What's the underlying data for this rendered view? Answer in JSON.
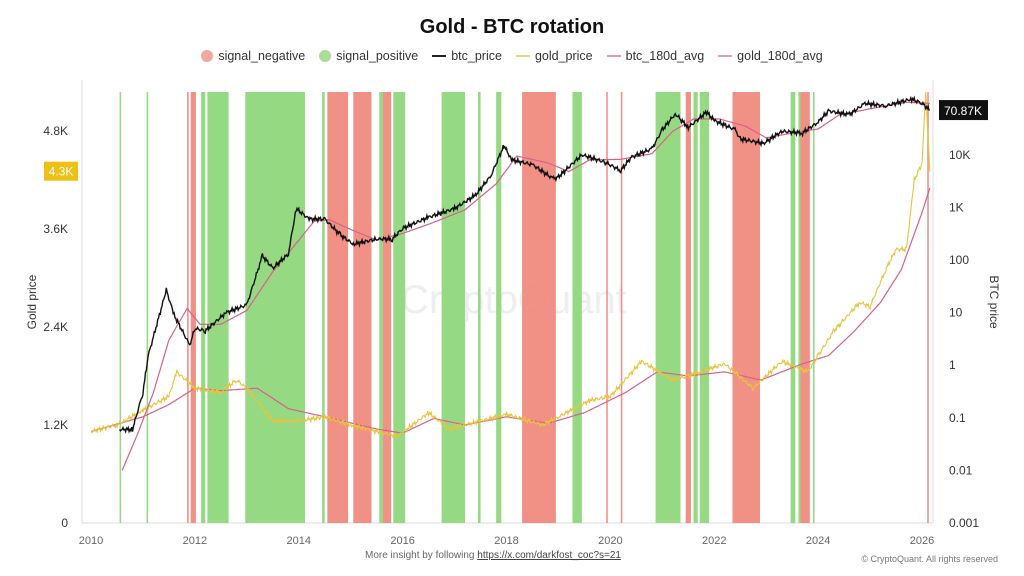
{
  "chart_data": {
    "type": "line",
    "title": "Gold - BTC rotation",
    "legend": [
      "signal_negative",
      "signal_positive",
      "btc_price",
      "gold_price",
      "btc_180d_avg",
      "gold_180d_avg"
    ],
    "legend_placement": "top",
    "colors": {
      "signal_negative": "#f08a7e",
      "signal_positive": "#8fd87c",
      "btc_price": "#111111",
      "gold_price": "#e8c43c",
      "btc_180d_avg": "#d9608c",
      "gold_180d_avg": "#d9608c"
    },
    "left_axis": {
      "label": "Gold price",
      "scale": "linear",
      "range": [
        0,
        5300
      ],
      "ticks": [
        "0",
        "1.2K",
        "2.4K",
        "3.6K",
        "4.8K"
      ],
      "tick_values": [
        0,
        1200,
        2400,
        3600,
        4800
      ],
      "current_label": "4.3K"
    },
    "right_axis": {
      "label": "BTC price",
      "scale": "log",
      "range": [
        0.001,
        150000
      ],
      "ticks": [
        "0.001",
        "0.01",
        "0.1",
        "1",
        "10",
        "100",
        "1K",
        "10K"
      ],
      "tick_values": [
        0.001,
        0.01,
        0.1,
        1,
        10,
        100,
        1000,
        10000
      ],
      "current_label": "70.87K"
    },
    "x_axis": {
      "range": [
        2009.9,
        2026.3
      ],
      "ticks": [
        "2010",
        "2012",
        "2014",
        "2016",
        "2018",
        "2020",
        "2022",
        "2024",
        "2026"
      ]
    },
    "grid": false,
    "btc_price": [
      [
        2010.55,
        0.06
      ],
      [
        2010.8,
        0.06
      ],
      [
        2011.0,
        0.3
      ],
      [
        2011.1,
        1.5
      ],
      [
        2011.45,
        27
      ],
      [
        2011.6,
        9
      ],
      [
        2011.9,
        2.4
      ],
      [
        2012.0,
        5
      ],
      [
        2012.2,
        4.5
      ],
      [
        2012.6,
        10
      ],
      [
        2013.0,
        14
      ],
      [
        2013.3,
        120
      ],
      [
        2013.5,
        70
      ],
      [
        2013.8,
        130
      ],
      [
        2013.95,
        950
      ],
      [
        2014.2,
        600
      ],
      [
        2014.5,
        600
      ],
      [
        2014.8,
        300
      ],
      [
        2015.05,
        200
      ],
      [
        2015.5,
        250
      ],
      [
        2015.8,
        250
      ],
      [
        2016.0,
        400
      ],
      [
        2016.5,
        650
      ],
      [
        2017.0,
        950
      ],
      [
        2017.4,
        1700
      ],
      [
        2017.7,
        4000
      ],
      [
        2017.95,
        15000
      ],
      [
        2018.1,
        8000
      ],
      [
        2018.5,
        6500
      ],
      [
        2018.9,
        3500
      ],
      [
        2019.0,
        3800
      ],
      [
        2019.45,
        10000
      ],
      [
        2019.9,
        7200
      ],
      [
        2020.2,
        5000
      ],
      [
        2020.4,
        9000
      ],
      [
        2020.8,
        13000
      ],
      [
        2021.0,
        30000
      ],
      [
        2021.25,
        60000
      ],
      [
        2021.5,
        33000
      ],
      [
        2021.85,
        65000
      ],
      [
        2022.0,
        45000
      ],
      [
        2022.4,
        30000
      ],
      [
        2022.5,
        20000
      ],
      [
        2022.95,
        16500
      ],
      [
        2023.3,
        28000
      ],
      [
        2023.7,
        26000
      ],
      [
        2024.0,
        42000
      ],
      [
        2024.2,
        68000
      ],
      [
        2024.6,
        58000
      ],
      [
        2024.9,
        95000
      ],
      [
        2025.3,
        85000
      ],
      [
        2025.8,
        115000
      ],
      [
        2026.0,
        95000
      ],
      [
        2026.15,
        70870
      ]
    ],
    "btc_180d_avg": [
      [
        2010.6,
        0.01
      ],
      [
        2010.9,
        0.05
      ],
      [
        2011.2,
        0.3
      ],
      [
        2011.5,
        3
      ],
      [
        2011.85,
        12
      ],
      [
        2012.1,
        6
      ],
      [
        2012.5,
        6
      ],
      [
        2013.0,
        11
      ],
      [
        2013.5,
        60
      ],
      [
        2013.9,
        180
      ],
      [
        2014.3,
        550
      ],
      [
        2014.6,
        580
      ],
      [
        2015.0,
        380
      ],
      [
        2015.5,
        240
      ],
      [
        2016.0,
        320
      ],
      [
        2016.6,
        520
      ],
      [
        2017.2,
        900
      ],
      [
        2017.8,
        2800
      ],
      [
        2018.2,
        9500
      ],
      [
        2018.8,
        7000
      ],
      [
        2019.2,
        4800
      ],
      [
        2019.6,
        8000
      ],
      [
        2020.2,
        8200
      ],
      [
        2020.8,
        10500
      ],
      [
        2021.2,
        28000
      ],
      [
        2021.6,
        48000
      ],
      [
        2022.1,
        48000
      ],
      [
        2022.6,
        35000
      ],
      [
        2023.0,
        21000
      ],
      [
        2023.6,
        27000
      ],
      [
        2024.0,
        31000
      ],
      [
        2024.4,
        57000
      ],
      [
        2025.0,
        75000
      ],
      [
        2025.7,
        100000
      ],
      [
        2026.15,
        95000
      ]
    ],
    "gold_price": [
      [
        2010.0,
        1120
      ],
      [
        2010.5,
        1200
      ],
      [
        2011.0,
        1380
      ],
      [
        2011.5,
        1550
      ],
      [
        2011.65,
        1850
      ],
      [
        2012.0,
        1650
      ],
      [
        2012.5,
        1600
      ],
      [
        2012.8,
        1750
      ],
      [
        2013.0,
        1650
      ],
      [
        2013.5,
        1250
      ],
      [
        2014.0,
        1250
      ],
      [
        2014.5,
        1300
      ],
      [
        2015.0,
        1200
      ],
      [
        2015.9,
        1060
      ],
      [
        2016.5,
        1350
      ],
      [
        2016.9,
        1150
      ],
      [
        2017.5,
        1250
      ],
      [
        2018.0,
        1330
      ],
      [
        2018.7,
        1200
      ],
      [
        2019.0,
        1300
      ],
      [
        2019.6,
        1500
      ],
      [
        2020.0,
        1550
      ],
      [
        2020.6,
        1980
      ],
      [
        2021.2,
        1750
      ],
      [
        2021.5,
        1800
      ],
      [
        2022.2,
        1950
      ],
      [
        2022.75,
        1650
      ],
      [
        2023.3,
        1980
      ],
      [
        2023.8,
        1850
      ],
      [
        2024.0,
        2050
      ],
      [
        2024.3,
        2350
      ],
      [
        2024.8,
        2700
      ],
      [
        2025.0,
        2650
      ],
      [
        2025.3,
        3100
      ],
      [
        2025.5,
        3350
      ],
      [
        2025.7,
        3350
      ],
      [
        2025.85,
        4200
      ],
      [
        2026.0,
        4400
      ],
      [
        2026.07,
        5300
      ],
      [
        2026.15,
        4300
      ]
    ],
    "gold_180d_avg": [
      [
        2010.0,
        1120
      ],
      [
        2011.0,
        1300
      ],
      [
        2011.5,
        1450
      ],
      [
        2012.0,
        1650
      ],
      [
        2012.5,
        1620
      ],
      [
        2013.2,
        1650
      ],
      [
        2013.8,
        1400
      ],
      [
        2014.5,
        1300
      ],
      [
        2015.5,
        1150
      ],
      [
        2016.0,
        1100
      ],
      [
        2016.6,
        1280
      ],
      [
        2017.2,
        1200
      ],
      [
        2018.0,
        1300
      ],
      [
        2018.8,
        1220
      ],
      [
        2019.5,
        1350
      ],
      [
        2020.3,
        1600
      ],
      [
        2020.9,
        1850
      ],
      [
        2021.5,
        1800
      ],
      [
        2022.2,
        1850
      ],
      [
        2022.9,
        1750
      ],
      [
        2023.7,
        1950
      ],
      [
        2024.2,
        2050
      ],
      [
        2024.7,
        2350
      ],
      [
        2025.2,
        2700
      ],
      [
        2025.6,
        3100
      ],
      [
        2026.0,
        3800
      ],
      [
        2026.15,
        4100
      ]
    ],
    "signal_positive": [
      [
        2010.55,
        2010.58
      ],
      [
        2011.07,
        2011.1
      ],
      [
        2012.12,
        2012.2
      ],
      [
        2012.24,
        2012.65
      ],
      [
        2012.97,
        2014.12
      ],
      [
        2014.45,
        2014.5
      ],
      [
        2015.55,
        2015.62
      ],
      [
        2015.82,
        2016.05
      ],
      [
        2016.75,
        2017.2
      ],
      [
        2017.45,
        2017.5
      ],
      [
        2017.8,
        2017.9
      ],
      [
        2019.27,
        2019.45
      ],
      [
        2020.87,
        2021.35
      ],
      [
        2021.6,
        2021.68
      ],
      [
        2021.72,
        2021.9
      ],
      [
        2023.47,
        2023.56
      ],
      [
        2023.62,
        2023.66
      ],
      [
        2023.9,
        2023.93
      ]
    ],
    "signal_negative": [
      [
        2011.85,
        2011.88
      ],
      [
        2011.92,
        2012.02
      ],
      [
        2014.55,
        2014.95
      ],
      [
        2015.05,
        2015.4
      ],
      [
        2015.62,
        2015.78
      ],
      [
        2018.3,
        2018.95
      ],
      [
        2019.92,
        2019.95
      ],
      [
        2020.2,
        2020.23
      ],
      [
        2021.45,
        2021.55
      ],
      [
        2022.35,
        2022.88
      ],
      [
        2023.66,
        2023.84
      ],
      [
        2026.1,
        2026.13
      ]
    ]
  },
  "footer": {
    "text": "More insight by following ",
    "link": "https://x.com/darkfost_coc?s=21",
    "copyright": "© CryptoQuant. All rights reserved"
  },
  "watermark": "CryptoQuant"
}
